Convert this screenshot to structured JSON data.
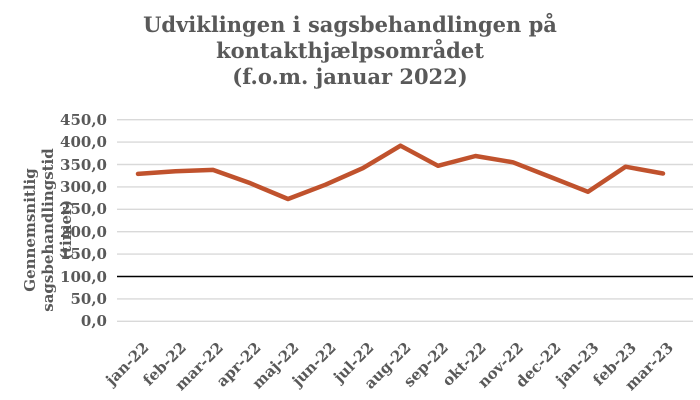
{
  "title": {
    "line1": "Udviklingen i sagsbehandlingen på",
    "line2": "kontakthjælpsområdet",
    "line3": "(f.o.m. januar 2022)"
  },
  "y_axis": {
    "title_line1": "Gennemsnitlig sagsbehandlingstid",
    "title_line2": "(timer)"
  },
  "chart_data": {
    "type": "line",
    "title": "Udviklingen i sagsbehandlingen på kontakthjælpsområdet (f.o.m. januar 2022)",
    "ylabel": "Gennemsnitlig sagsbehandlingstid (timer)",
    "xlabel": "",
    "categories": [
      "jan-22",
      "feb-22",
      "mar-22",
      "apr-22",
      "maj-22",
      "jun-22",
      "jul-22",
      "aug-22",
      "sep-22",
      "okt-22",
      "nov-22",
      "dec-22",
      "jan-23",
      "feb-23",
      "mar-23"
    ],
    "values": [
      329,
      335,
      338,
      308,
      273,
      305,
      342,
      392,
      347,
      369,
      355,
      322,
      289,
      345,
      330
    ],
    "ylim": [
      0,
      450
    ],
    "ytick_step": 50,
    "ytick_labels": [
      "450,0",
      "400,0",
      "350,0",
      "300,0",
      "250,0",
      "200,0",
      "150,0",
      "100,0",
      "50,0",
      "0,0"
    ],
    "grid": true,
    "legend": "none",
    "reference_line_y": 100,
    "line_color": "#C0522D",
    "gridline_color": "#D9D9D9",
    "reference_line_color": "#000000",
    "text_color": "#595959"
  }
}
